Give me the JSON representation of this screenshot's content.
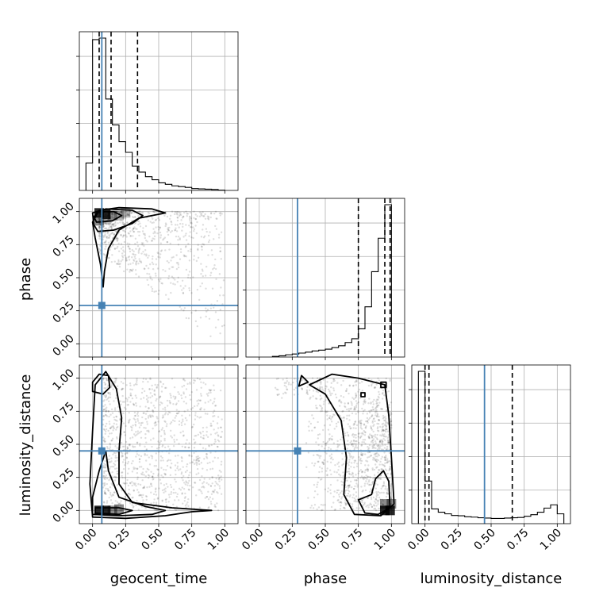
{
  "chart_data": {
    "type": "corner",
    "parameters": [
      "geocent_time",
      "phase",
      "luminosity_distance"
    ],
    "tick_labels": [
      "0.00",
      "0.25",
      "0.50",
      "0.75",
      "1.00"
    ],
    "tick_values": [
      0,
      0.25,
      0.5,
      0.75,
      1.0
    ],
    "axis_range": [
      -0.1,
      1.1
    ],
    "truth_color": "#4682b4",
    "grid": true,
    "truths": {
      "geocent_time": 0.07,
      "phase": 0.29,
      "luminosity_distance": 0.45
    },
    "diagonal": [
      {
        "parameter": "geocent_time",
        "bin_edges": [
          -0.05,
          0.0,
          0.05,
          0.1,
          0.15,
          0.2,
          0.25,
          0.3,
          0.35,
          0.4,
          0.45,
          0.5,
          0.55,
          0.6,
          0.65,
          0.7,
          0.75,
          0.8,
          0.85,
          0.9,
          0.95,
          1.0
        ],
        "counts": [
          0.18,
          0.99,
          1.0,
          0.6,
          0.43,
          0.32,
          0.25,
          0.16,
          0.12,
          0.09,
          0.07,
          0.05,
          0.04,
          0.03,
          0.025,
          0.02,
          0.012,
          0.01,
          0.008,
          0.006,
          0.002
        ],
        "quantile_lines": [
          0.05,
          0.14,
          0.34
        ]
      },
      {
        "parameter": "phase",
        "bin_edges": [
          0.1,
          0.15,
          0.2,
          0.25,
          0.3,
          0.35,
          0.4,
          0.45,
          0.5,
          0.55,
          0.6,
          0.65,
          0.7,
          0.75,
          0.8,
          0.85,
          0.9,
          0.95,
          1.0
        ],
        "counts": [
          0.004,
          0.008,
          0.015,
          0.02,
          0.026,
          0.032,
          0.04,
          0.045,
          0.052,
          0.062,
          0.074,
          0.095,
          0.12,
          0.185,
          0.33,
          0.56,
          0.78,
          1.0
        ],
        "quantile_lines": [
          0.75,
          0.95,
          0.99
        ]
      },
      {
        "parameter": "luminosity_distance",
        "bin_edges": [
          -0.05,
          0.0,
          0.05,
          0.1,
          0.15,
          0.2,
          0.25,
          0.3,
          0.35,
          0.4,
          0.45,
          0.5,
          0.55,
          0.6,
          0.65,
          0.7,
          0.75,
          0.8,
          0.85,
          0.9,
          0.95,
          1.0,
          1.05
        ],
        "counts": [
          0.93,
          0.26,
          0.09,
          0.07,
          0.06,
          0.05,
          0.048,
          0.042,
          0.04,
          0.036,
          0.034,
          0.032,
          0.032,
          0.034,
          0.036,
          0.038,
          0.045,
          0.055,
          0.07,
          0.095,
          0.115,
          0.06
        ],
        "quantile_lines": [
          0.0,
          0.03,
          0.66
        ]
      }
    ],
    "offdiagonal": [
      {
        "x": "geocent_time",
        "y": "phase",
        "density_peaks": [
          [
            0.05,
            0.99
          ],
          [
            0.1,
            0.98
          ],
          [
            0.15,
            0.97
          ],
          [
            0.05,
            0.93
          ],
          [
            0.1,
            0.94
          ],
          [
            0.2,
            0.97
          ],
          [
            0.25,
            0.99
          ]
        ],
        "contours": [
          [
            [
              0.08,
              0.43
            ],
            [
              0.09,
              0.55
            ],
            [
              0.12,
              0.72
            ],
            [
              0.2,
              0.86
            ],
            [
              0.35,
              0.95
            ],
            [
              0.55,
              0.99
            ],
            [
              0.45,
              1.02
            ],
            [
              0.2,
              1.03
            ],
            [
              0.05,
              1.01
            ],
            [
              0.0,
              0.92
            ],
            [
              0.02,
              0.8
            ],
            [
              0.06,
              0.6
            ],
            [
              0.08,
              0.43
            ]
          ],
          [
            [
              0.04,
              0.85
            ],
            [
              0.16,
              0.86
            ],
            [
              0.3,
              0.91
            ],
            [
              0.38,
              0.97
            ],
            [
              0.3,
              1.01
            ],
            [
              0.1,
              1.02
            ],
            [
              0.0,
              0.99
            ],
            [
              0.01,
              0.9
            ],
            [
              0.04,
              0.85
            ]
          ],
          [
            [
              0.03,
              0.92
            ],
            [
              0.15,
              0.93
            ],
            [
              0.22,
              0.97
            ],
            [
              0.16,
              1.0
            ],
            [
              0.04,
              1.0
            ],
            [
              0.01,
              0.96
            ],
            [
              0.03,
              0.92
            ]
          ]
        ]
      },
      {
        "x": "geocent_time",
        "y": "luminosity_distance",
        "density_peaks": [
          [
            0.05,
            0.0
          ],
          [
            0.1,
            0.0
          ],
          [
            0.15,
            0.0
          ],
          [
            0.2,
            0.01
          ]
        ],
        "contours": [
          [
            [
              0.0,
              -0.05
            ],
            [
              0.25,
              -0.06
            ],
            [
              0.55,
              -0.04
            ],
            [
              0.75,
              -0.01
            ],
            [
              0.9,
              0.0
            ],
            [
              0.6,
              0.02
            ],
            [
              0.3,
              0.06
            ],
            [
              0.2,
              0.2
            ],
            [
              0.2,
              0.45
            ],
            [
              0.22,
              0.7
            ],
            [
              0.18,
              0.92
            ],
            [
              0.1,
              1.05
            ],
            [
              0.02,
              0.95
            ],
            [
              0.0,
              0.6
            ],
            [
              -0.02,
              0.2
            ],
            [
              0.0,
              -0.05
            ]
          ],
          [
            [
              0.0,
              -0.03
            ],
            [
              0.2,
              -0.04
            ],
            [
              0.45,
              -0.03
            ],
            [
              0.55,
              0.0
            ],
            [
              0.4,
              0.03
            ],
            [
              0.2,
              0.1
            ],
            [
              0.12,
              0.3
            ],
            [
              0.1,
              0.45
            ],
            [
              0.05,
              0.3
            ],
            [
              0.0,
              0.1
            ],
            [
              0.0,
              -0.03
            ]
          ],
          [
            [
              0.0,
              0.9
            ],
            [
              0.08,
              0.88
            ],
            [
              0.13,
              0.93
            ],
            [
              0.12,
              1.02
            ],
            [
              0.05,
              1.03
            ],
            [
              0.0,
              0.97
            ],
            [
              0.0,
              0.9
            ]
          ],
          [
            [
              0.02,
              -0.02
            ],
            [
              0.2,
              -0.03
            ],
            [
              0.3,
              0.0
            ],
            [
              0.2,
              0.02
            ],
            [
              0.02,
              0.02
            ],
            [
              0.02,
              -0.02
            ]
          ]
        ]
      },
      {
        "x": "phase",
        "y": "luminosity_distance",
        "density_peaks": [
          [
            0.99,
            0.0
          ],
          [
            0.95,
            0.0
          ],
          [
            0.95,
            0.05
          ],
          [
            1.0,
            0.05
          ]
        ],
        "contours": [
          [
            [
              0.38,
              0.95
            ],
            [
              0.5,
              0.88
            ],
            [
              0.62,
              0.68
            ],
            [
              0.66,
              0.4
            ],
            [
              0.64,
              0.12
            ],
            [
              0.72,
              -0.03
            ],
            [
              0.92,
              -0.04
            ],
            [
              1.02,
              0.05
            ],
            [
              1.0,
              0.4
            ],
            [
              0.98,
              0.72
            ],
            [
              0.95,
              0.95
            ],
            [
              0.75,
              1.0
            ],
            [
              0.55,
              1.03
            ],
            [
              0.38,
              0.95
            ]
          ],
          [
            [
              0.75,
              0.08
            ],
            [
              0.8,
              -0.02
            ],
            [
              0.9,
              -0.03
            ],
            [
              0.99,
              0.02
            ],
            [
              0.98,
              0.22
            ],
            [
              0.94,
              0.3
            ],
            [
              0.88,
              0.24
            ],
            [
              0.85,
              0.12
            ],
            [
              0.75,
              0.08
            ]
          ],
          [
            [
              0.77,
              0.86
            ],
            [
              0.8,
              0.86
            ],
            [
              0.8,
              0.89
            ],
            [
              0.77,
              0.89
            ],
            [
              0.77,
              0.86
            ]
          ],
          [
            [
              0.92,
              0.93
            ],
            [
              0.96,
              0.93
            ],
            [
              0.96,
              0.97
            ],
            [
              0.92,
              0.97
            ],
            [
              0.92,
              0.93
            ]
          ],
          [
            [
              0.32,
              1.02
            ],
            [
              0.3,
              0.94
            ],
            [
              0.37,
              0.97
            ],
            [
              0.32,
              1.02
            ]
          ]
        ]
      }
    ],
    "scatter_params": {
      "geocent_time_phase": {
        "n": 900,
        "seed": 3
      },
      "geocent_time_luminosity_distance": {
        "n": 1100,
        "seed": 7
      },
      "phase_luminosity_distance": {
        "n": 1100,
        "seed": 11
      }
    }
  }
}
